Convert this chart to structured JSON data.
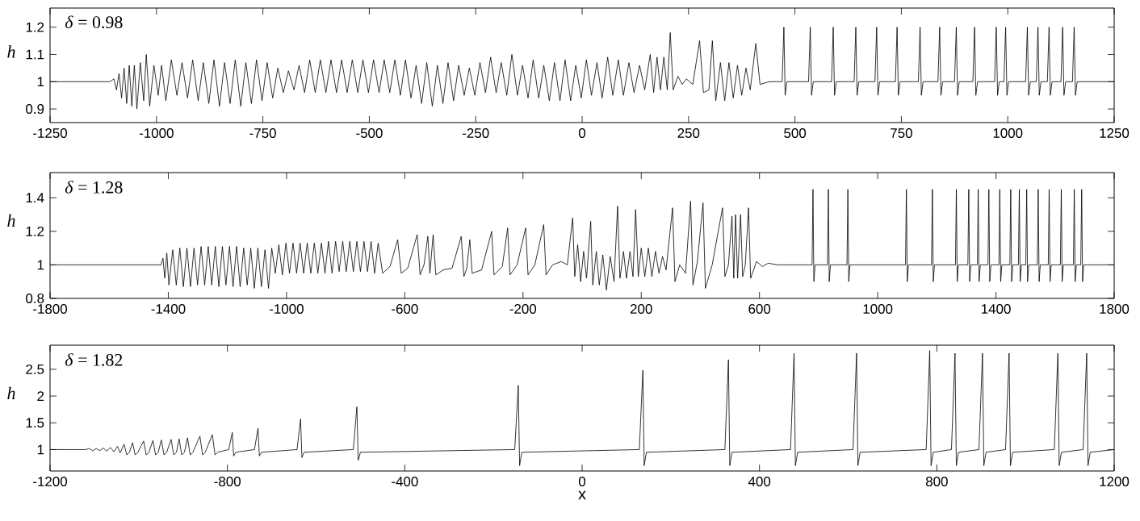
{
  "chart_data": [
    {
      "type": "line",
      "ylabel": "h",
      "annotations": [
        "*δ* = 0.98"
      ],
      "xlim": [
        -1250,
        1250
      ],
      "ylim": [
        0.85,
        1.27
      ],
      "xticks": [
        -1250,
        -1000,
        -750,
        -500,
        -250,
        0,
        250,
        500,
        750,
        1000,
        1250
      ],
      "yticks": [
        0.9,
        1,
        1.1,
        1.2
      ],
      "series": [
        {
          "color": "#000000",
          "x": [
            -1250,
            -1110,
            -1100,
            -1094,
            -1088,
            -1082,
            -1076,
            -1070,
            -1064,
            -1058,
            -1052,
            -1046,
            -1038,
            -1030,
            -1024,
            -1016,
            -1006,
            -996,
            -988,
            -978,
            -965,
            -952,
            -940,
            -927,
            -915,
            -902,
            -890,
            -877,
            -865,
            -852,
            -840,
            -827,
            -815,
            -802,
            -790,
            -777,
            -765,
            -752,
            -740,
            -727,
            -715,
            -702,
            -690,
            -677,
            -665,
            -652,
            -640,
            -627,
            -615,
            -602,
            -590,
            -577,
            -565,
            -552,
            -540,
            -527,
            -515,
            -502,
            -490,
            -477,
            -465,
            -452,
            -440,
            -427,
            -415,
            -402,
            -390,
            -377,
            -365,
            -352,
            -340,
            -327,
            -315,
            -302,
            -290,
            -277,
            -265,
            -252,
            -240,
            -227,
            -215,
            -202,
            -190,
            -177,
            -165,
            -152,
            -140,
            -127,
            -115,
            -102,
            -90,
            -77,
            -65,
            -52,
            -40,
            -27,
            -15,
            -2,
            10,
            22,
            35,
            47,
            60,
            72,
            85,
            97,
            110,
            122,
            135,
            147,
            160,
            168,
            176,
            184,
            192,
            200,
            207,
            214,
            225,
            235,
            245,
            260,
            276,
            285,
            298,
            306,
            314,
            325,
            335,
            345,
            355,
            365,
            375,
            385,
            395,
            408,
            418,
            440,
            465,
            470,
            474,
            477,
            481,
            532,
            536,
            539,
            543,
            586,
            590,
            593,
            597,
            639,
            643,
            646,
            650,
            688,
            692,
            695,
            699,
            736,
            740,
            743,
            747,
            790,
            794,
            797,
            801,
            836,
            840,
            843,
            847,
            875,
            879,
            882,
            886,
            918,
            922,
            925,
            929,
            969,
            973,
            976,
            980,
            991,
            995,
            998,
            1002,
            1042,
            1046,
            1049,
            1053,
            1067,
            1071,
            1074,
            1078,
            1093,
            1097,
            1100,
            1104,
            1125,
            1129,
            1132,
            1136,
            1152,
            1156,
            1159,
            1163,
            1250
          ],
          "values": [
            1,
            1,
            1.01,
            0.97,
            1.03,
            0.94,
            1.05,
            0.92,
            1.06,
            0.91,
            1.06,
            0.9,
            1.07,
            0.93,
            1.1,
            0.91,
            1.06,
            0.95,
            1.06,
            0.93,
            1.08,
            0.95,
            1.07,
            0.94,
            1.08,
            0.93,
            1.07,
            0.92,
            1.08,
            0.91,
            1.07,
            0.92,
            1.08,
            0.91,
            1.07,
            0.92,
            1.08,
            0.93,
            1.07,
            0.94,
            1.05,
            0.96,
            1.04,
            0.97,
            1.06,
            0.96,
            1.08,
            0.96,
            1.08,
            0.96,
            1.08,
            0.96,
            1.08,
            0.96,
            1.08,
            0.96,
            1.08,
            0.96,
            1.08,
            0.96,
            1.08,
            0.96,
            1.08,
            0.95,
            1.08,
            0.94,
            1.06,
            0.92,
            1.07,
            0.91,
            1.06,
            0.92,
            1.07,
            0.93,
            1.06,
            0.95,
            1.05,
            0.95,
            1.07,
            0.96,
            1.09,
            0.96,
            1.07,
            0.95,
            1.1,
            0.95,
            1.06,
            0.94,
            1.08,
            0.94,
            1.06,
            0.93,
            1.07,
            0.93,
            1.08,
            0.93,
            1.06,
            0.94,
            1.08,
            0.95,
            1.07,
            0.94,
            1.09,
            0.95,
            1.08,
            0.95,
            1.07,
            0.96,
            1.06,
            0.97,
            1.1,
            0.96,
            1.09,
            0.97,
            1.09,
            0.97,
            1.18,
            0.97,
            1.02,
            0.99,
            1.01,
            0.99,
            1.15,
            0.96,
            0.97,
            1.15,
            0.93,
            1.07,
            0.93,
            1.07,
            0.94,
            1.06,
            0.95,
            1.05,
            0.97,
            1.14,
            0.99,
            1.0,
            1.0,
            1,
            1.2,
            0.95,
            1,
            1,
            1.2,
            0.95,
            1,
            1,
            1.2,
            0.95,
            1,
            1,
            1.2,
            0.95,
            1,
            1,
            1.2,
            0.95,
            1,
            1,
            1.2,
            0.95,
            1,
            1,
            1.2,
            0.95,
            1,
            1,
            1.2,
            0.95,
            1,
            1,
            1.2,
            0.95,
            1,
            1,
            1.2,
            0.95,
            1,
            1,
            1.2,
            0.95,
            1,
            1,
            1.2,
            0.95,
            1,
            1,
            1.2,
            0.95,
            1,
            1,
            1.2,
            0.95,
            1,
            1,
            1.2,
            0.95,
            1,
            1,
            1.2,
            0.95,
            1,
            1,
            1.2,
            0.95,
            1,
            1
          ]
        }
      ]
    },
    {
      "type": "line",
      "ylabel": "h",
      "annotations": [
        "*δ* = 1.28"
      ],
      "xlim": [
        -1800,
        1800
      ],
      "ylim": [
        0.8,
        1.55
      ],
      "xticks": [
        -1800,
        -1400,
        -1000,
        -600,
        -200,
        200,
        600,
        1000,
        1400,
        1800
      ],
      "yticks": [
        0.8,
        1,
        1.2,
        1.4
      ],
      "series": [
        {
          "color": "#000000",
          "x": [
            -1800,
            -1425,
            -1418,
            -1412,
            -1405,
            -1398,
            -1385,
            -1373,
            -1361,
            -1349,
            -1337,
            -1325,
            -1313,
            -1301,
            -1289,
            -1277,
            -1265,
            -1253,
            -1241,
            -1229,
            -1217,
            -1205,
            -1193,
            -1181,
            -1169,
            -1157,
            -1145,
            -1133,
            -1121,
            -1109,
            -1097,
            -1085,
            -1073,
            -1061,
            -1050,
            -1038,
            -1026,
            -1014,
            -1002,
            -990,
            -978,
            -966,
            -954,
            -942,
            -930,
            -918,
            -906,
            -894,
            -882,
            -870,
            -858,
            -846,
            -834,
            -822,
            -810,
            -798,
            -786,
            -774,
            -762,
            -750,
            -738,
            -726,
            -714,
            -702,
            -690,
            -675,
            -650,
            -624,
            -612,
            -590,
            -558,
            -548,
            -535,
            -522,
            -515,
            -504,
            -495,
            -470,
            -440,
            -409,
            -400,
            -390,
            -380,
            -372,
            -340,
            -306,
            -298,
            -270,
            -252,
            -244,
            -220,
            -191,
            -183,
            -160,
            -130,
            -122,
            -100,
            -70,
            -50,
            -32,
            -25,
            -15,
            -5,
            5,
            15,
            29,
            36,
            48,
            58,
            70,
            82,
            95,
            108,
            120,
            128,
            140,
            150,
            162,
            172,
            181,
            190,
            200,
            212,
            224,
            236,
            248,
            260,
            272,
            284,
            306,
            314,
            330,
            350,
            367,
            375,
            390,
            409,
            417,
            440,
            475,
            483,
            495,
            507,
            513,
            519,
            526,
            536,
            543,
            552,
            563,
            570,
            590,
            610,
            630,
            660,
            778,
            781,
            784,
            788,
            830,
            833,
            836,
            840,
            896,
            899,
            902,
            906,
            1094,
            1097,
            1100,
            1104,
            1182,
            1185,
            1188,
            1192,
            1263,
            1266,
            1269,
            1273,
            1305,
            1308,
            1311,
            1315,
            1337,
            1340,
            1343,
            1347,
            1373,
            1376,
            1379,
            1383,
            1410,
            1413,
            1416,
            1420,
            1447,
            1450,
            1453,
            1457,
            1476,
            1479,
            1482,
            1486,
            1501,
            1504,
            1507,
            1511,
            1540,
            1543,
            1546,
            1550,
            1577,
            1580,
            1583,
            1587,
            1618,
            1621,
            1624,
            1628,
            1662,
            1665,
            1668,
            1672,
            1687,
            1690,
            1693,
            1697,
            1800
          ],
          "values": [
            1,
            1,
            1.04,
            0.92,
            1.07,
            0.88,
            1.09,
            0.88,
            1.1,
            0.87,
            1.1,
            0.87,
            1.1,
            0.88,
            1.11,
            0.88,
            1.11,
            0.88,
            1.11,
            0.87,
            1.11,
            0.88,
            1.11,
            0.87,
            1.11,
            0.87,
            1.1,
            0.88,
            1.1,
            0.86,
            1.1,
            0.87,
            1.09,
            0.86,
            1.1,
            0.95,
            1.12,
            0.94,
            1.13,
            0.95,
            1.13,
            0.95,
            1.13,
            0.95,
            1.13,
            0.95,
            1.13,
            0.95,
            1.13,
            0.95,
            1.14,
            0.95,
            1.14,
            0.96,
            1.14,
            0.96,
            1.14,
            0.96,
            1.14,
            0.96,
            1.14,
            0.96,
            1.14,
            0.95,
            1.13,
            0.95,
            0.99,
            1.15,
            0.95,
            0.98,
            1.18,
            0.94,
            1.0,
            1.17,
            0.95,
            1.18,
            0.94,
            0.97,
            0.98,
            1.17,
            0.93,
            0.98,
            1.15,
            0.95,
            0.97,
            1.2,
            0.94,
            0.99,
            1.22,
            0.94,
            1.0,
            1.22,
            0.94,
            1.0,
            1.24,
            0.94,
            1.0,
            1.02,
            1.0,
            1.28,
            0.93,
            1.12,
            0.9,
            1.08,
            0.92,
            1.26,
            0.88,
            1.08,
            0.88,
            1.06,
            0.85,
            1.05,
            0.9,
            1.35,
            0.92,
            1.08,
            0.92,
            1.08,
            0.93,
            1.33,
            0.93,
            1.1,
            0.93,
            1.1,
            0.93,
            1.08,
            0.95,
            1.05,
            0.97,
            1.34,
            0.9,
            1.0,
            0.95,
            1.38,
            0.88,
            1.02,
            1.37,
            0.86,
            1.0,
            1.34,
            0.93,
            1.0,
            1.29,
            0.92,
            1.3,
            0.92,
            1.3,
            0.93,
            1.0,
            1.34,
            0.92,
            1.02,
            0.99,
            1.01,
            1.0,
            1,
            1.45,
            0.9,
            1,
            1,
            1.45,
            0.9,
            1,
            1,
            1.45,
            0.9,
            1,
            1,
            1.45,
            0.9,
            1,
            1,
            1.45,
            0.9,
            1,
            1,
            1.45,
            0.9,
            1,
            1,
            1.45,
            0.9,
            1,
            1,
            1.45,
            0.9,
            1,
            1,
            1.45,
            0.9,
            1,
            1,
            1.45,
            0.9,
            1,
            1,
            1.45,
            0.9,
            1,
            1,
            1.45,
            0.9,
            1,
            1,
            1.45,
            0.9,
            1,
            1,
            1.45,
            0.9,
            1,
            1,
            1.45,
            0.9,
            1,
            1,
            1.45,
            0.9,
            1,
            1,
            1.45,
            0.9,
            1,
            1,
            1.45,
            0.9,
            1,
            1
          ]
        }
      ]
    },
    {
      "type": "line",
      "ylabel": "h",
      "xlabel": "x",
      "annotations": [
        "*δ* = 1.82"
      ],
      "xlim": [
        -1200,
        1200
      ],
      "ylim": [
        0.6,
        2.95
      ],
      "xticks": [
        -1200,
        -800,
        -400,
        0,
        400,
        800,
        1200
      ],
      "yticks": [
        1,
        1.5,
        2,
        2.5
      ],
      "series": [
        {
          "color": "#000000",
          "x": [
            -1200,
            -1120,
            -1112,
            -1104,
            -1096,
            -1088,
            -1080,
            -1072,
            -1064,
            -1056,
            -1048,
            -1042,
            -1033,
            -1027,
            -1021,
            -1014,
            -1008,
            -1002,
            -989,
            -983,
            -977,
            -968,
            -962,
            -956,
            -949,
            -943,
            -937,
            -927,
            -921,
            -915,
            -909,
            -903,
            -897,
            -890,
            -884,
            -878,
            -862,
            -856,
            -850,
            -834,
            -828,
            -822,
            -797,
            -789,
            -786,
            -781,
            -739,
            -731,
            -728,
            -723,
            -643,
            -635,
            -632,
            -627,
            -516,
            -508,
            -505,
            -500,
            -152,
            -144,
            -141,
            -136,
            129,
            137,
            140,
            145,
            322,
            330,
            333,
            338,
            470,
            478,
            481,
            486,
            611,
            619,
            622,
            627,
            776,
            784,
            787,
            792,
            833,
            841,
            844,
            849,
            895,
            903,
            906,
            911,
            955,
            963,
            966,
            971,
            1065,
            1073,
            1076,
            1081,
            1130,
            1138,
            1141,
            1146,
            1200
          ],
          "values": [
            1,
            1,
            1.02,
            0.98,
            1.02,
            0.98,
            1.03,
            0.97,
            1.04,
            0.96,
            1.06,
            0.94,
            1.1,
            0.9,
            0.95,
            1.13,
            0.9,
            0.95,
            1.16,
            0.9,
            0.95,
            1.17,
            0.9,
            0.95,
            1.18,
            0.9,
            0.95,
            1.19,
            0.9,
            0.95,
            1.2,
            0.9,
            0.95,
            1.22,
            0.9,
            0.95,
            1.25,
            0.9,
            0.95,
            1.28,
            0.9,
            0.95,
            1.0,
            1.32,
            0.88,
            0.95,
            1.0,
            1.4,
            0.88,
            0.95,
            1.0,
            1.57,
            0.85,
            0.95,
            1.0,
            1.8,
            0.8,
            0.95,
            1.0,
            2.2,
            0.7,
            0.95,
            1.0,
            2.48,
            0.7,
            0.95,
            1.0,
            2.68,
            0.7,
            0.95,
            1.0,
            2.8,
            0.7,
            0.95,
            1.0,
            2.8,
            0.7,
            0.95,
            1.0,
            2.85,
            0.7,
            0.95,
            1.0,
            2.8,
            0.7,
            0.95,
            1.0,
            2.8,
            0.7,
            0.95,
            1.0,
            2.8,
            0.7,
            0.95,
            1.0,
            2.8,
            0.7,
            0.95,
            1.0,
            2.8,
            0.7,
            0.95,
            1
          ]
        }
      ]
    }
  ]
}
